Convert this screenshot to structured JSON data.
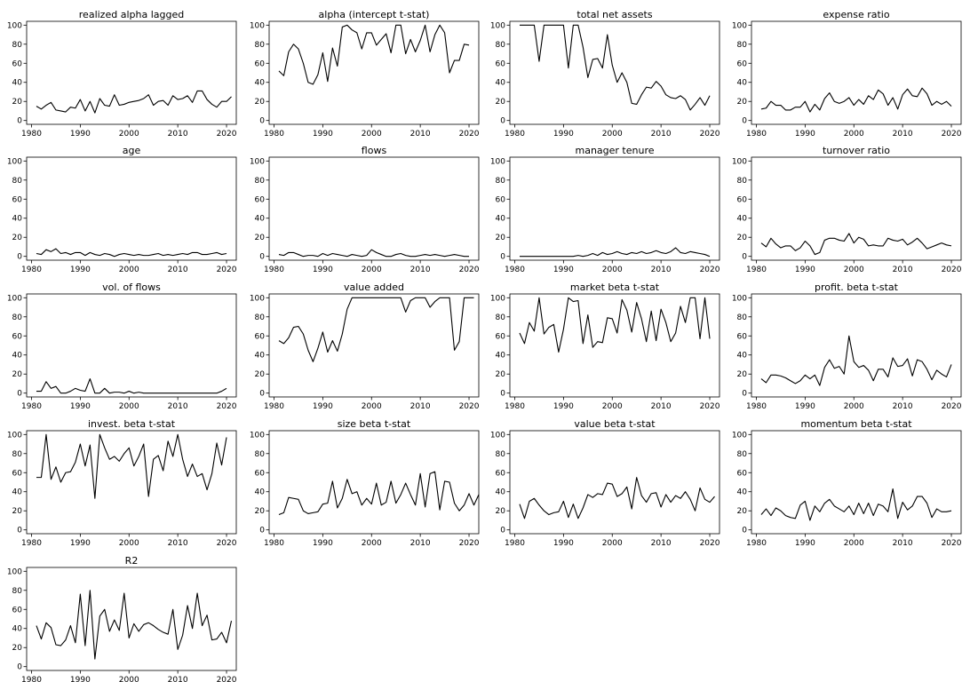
{
  "chart_data": [
    {
      "type": "line",
      "title": "realized alpha lagged",
      "x_start": 1981,
      "ylim": [
        0,
        100
      ],
      "xticks": [
        1980,
        1990,
        2000,
        2010,
        2020
      ],
      "yticks": [
        0,
        20,
        40,
        60,
        80,
        100
      ],
      "values": [
        15,
        12,
        16,
        19,
        11,
        10,
        9,
        14,
        13,
        22,
        10,
        20,
        8,
        23,
        16,
        15,
        27,
        16,
        17,
        19,
        20,
        21,
        23,
        27,
        16,
        20,
        21,
        16,
        26,
        22,
        23,
        26,
        19,
        31,
        31,
        22,
        17,
        14,
        20,
        20,
        25
      ]
    },
    {
      "type": "line",
      "title": "alpha (intercept t-stat)",
      "x_start": 1981,
      "ylim": [
        0,
        100
      ],
      "xticks": [
        1980,
        1990,
        2000,
        2010,
        2020
      ],
      "yticks": [
        0,
        20,
        40,
        60,
        80,
        100
      ],
      "values": [
        52,
        47,
        72,
        80,
        75,
        60,
        40,
        38,
        48,
        71,
        41,
        76,
        57,
        98,
        100,
        95,
        92,
        75,
        92,
        92,
        79,
        85,
        91,
        71,
        100,
        100,
        70,
        85,
        72,
        84,
        100,
        72,
        90,
        100,
        92,
        50,
        63,
        63,
        80,
        79
      ]
    },
    {
      "type": "line",
      "title": "total net assets",
      "x_start": 1981,
      "ylim": [
        0,
        100
      ],
      "xticks": [
        1980,
        1990,
        2000,
        2010,
        2020
      ],
      "yticks": [
        0,
        20,
        40,
        60,
        80,
        100
      ],
      "values": [
        100,
        100,
        100,
        100,
        62,
        100,
        100,
        100,
        100,
        100,
        55,
        100,
        100,
        77,
        45,
        64,
        65,
        55,
        90,
        58,
        40,
        50,
        40,
        18,
        17,
        27,
        35,
        34,
        41,
        36,
        27,
        24,
        23,
        26,
        22,
        11,
        17,
        24,
        16,
        26
      ]
    },
    {
      "type": "line",
      "title": "expense ratio",
      "x_start": 1981,
      "ylim": [
        0,
        100
      ],
      "xticks": [
        1980,
        1990,
        2000,
        2010,
        2020
      ],
      "yticks": [
        0,
        20,
        40,
        60,
        80,
        100
      ],
      "values": [
        12,
        13,
        20,
        16,
        16,
        11,
        11,
        14,
        14,
        20,
        9,
        17,
        11,
        23,
        29,
        20,
        18,
        20,
        24,
        16,
        22,
        17,
        26,
        22,
        32,
        28,
        16,
        24,
        12,
        27,
        33,
        26,
        25,
        34,
        28,
        16,
        20,
        17,
        20,
        15
      ]
    },
    {
      "type": "line",
      "title": "age",
      "x_start": 1981,
      "ylim": [
        0,
        100
      ],
      "xticks": [
        1980,
        1990,
        2000,
        2010,
        2020
      ],
      "yticks": [
        0,
        20,
        40,
        60,
        80,
        100
      ],
      "values": [
        3,
        2,
        7,
        5,
        8,
        3,
        4,
        2,
        4,
        4,
        1,
        4,
        2,
        1,
        3,
        2,
        0,
        2,
        3,
        2,
        1,
        2,
        1,
        1,
        2,
        3,
        1,
        2,
        1,
        2,
        3,
        2,
        4,
        4,
        2,
        2,
        3,
        4,
        2,
        3
      ]
    },
    {
      "type": "line",
      "title": "flows",
      "x_start": 1981,
      "ylim": [
        0,
        100
      ],
      "xticks": [
        1980,
        1990,
        2000,
        2010,
        2020
      ],
      "yticks": [
        0,
        20,
        40,
        60,
        80,
        100
      ],
      "values": [
        2,
        1,
        4,
        4,
        2,
        0,
        1,
        1,
        0,
        3,
        1,
        3,
        2,
        1,
        0,
        2,
        1,
        0,
        1,
        7,
        4,
        2,
        0,
        0,
        2,
        3,
        1,
        0,
        0,
        1,
        2,
        1,
        2,
        1,
        0,
        1,
        2,
        1,
        0,
        0
      ]
    },
    {
      "type": "line",
      "title": "manager tenure",
      "x_start": 1981,
      "ylim": [
        0,
        100
      ],
      "xticks": [
        1980,
        1990,
        2000,
        2010,
        2020
      ],
      "yticks": [
        0,
        20,
        40,
        60,
        80,
        100
      ],
      "values": [
        0,
        0,
        0,
        0,
        0,
        0,
        0,
        0,
        0,
        0,
        0,
        0,
        1,
        0,
        1,
        3,
        1,
        4,
        2,
        3,
        5,
        3,
        2,
        4,
        3,
        5,
        3,
        4,
        6,
        4,
        3,
        5,
        9,
        4,
        3,
        5,
        4,
        3,
        2,
        0
      ]
    },
    {
      "type": "line",
      "title": "turnover ratio",
      "x_start": 1981,
      "ylim": [
        0,
        100
      ],
      "xticks": [
        1980,
        1990,
        2000,
        2010,
        2020
      ],
      "yticks": [
        0,
        20,
        40,
        60,
        80,
        100
      ],
      "values": [
        14,
        10,
        19,
        13,
        9,
        11,
        11,
        6,
        9,
        16,
        11,
        2,
        4,
        17,
        19,
        19,
        17,
        16,
        24,
        14,
        20,
        18,
        11,
        12,
        11,
        11,
        19,
        17,
        16,
        18,
        12,
        15,
        19,
        14,
        8,
        10,
        12,
        14,
        12,
        11
      ]
    },
    {
      "type": "line",
      "title": "vol. of flows",
      "x_start": 1981,
      "ylim": [
        0,
        100
      ],
      "xticks": [
        1980,
        1990,
        2000,
        2010,
        2020
      ],
      "yticks": [
        0,
        20,
        40,
        60,
        80,
        100
      ],
      "values": [
        2,
        2,
        12,
        5,
        7,
        0,
        0,
        2,
        5,
        3,
        2,
        15,
        0,
        0,
        5,
        0,
        1,
        1,
        0,
        2,
        0,
        1,
        0,
        0,
        0,
        0,
        0,
        0,
        0,
        0,
        0,
        0,
        0,
        0,
        0,
        0,
        0,
        0,
        2,
        5
      ]
    },
    {
      "type": "line",
      "title": "value added",
      "x_start": 1981,
      "ylim": [
        0,
        100
      ],
      "xticks": [
        1980,
        1990,
        2000,
        2010,
        2020
      ],
      "yticks": [
        0,
        20,
        40,
        60,
        80,
        100
      ],
      "values": [
        55,
        52,
        58,
        69,
        70,
        62,
        45,
        33,
        47,
        64,
        43,
        55,
        44,
        62,
        88,
        100,
        100,
        100,
        100,
        100,
        100,
        100,
        100,
        100,
        100,
        100,
        85,
        97,
        100,
        100,
        100,
        90,
        96,
        100,
        100,
        100,
        45,
        54,
        100,
        100,
        100
      ]
    },
    {
      "type": "line",
      "title": "market beta t-stat",
      "x_start": 1981,
      "ylim": [
        0,
        100
      ],
      "xticks": [
        1980,
        1990,
        2000,
        2010,
        2020
      ],
      "yticks": [
        0,
        20,
        40,
        60,
        80,
        100
      ],
      "values": [
        63,
        52,
        74,
        65,
        100,
        62,
        69,
        72,
        43,
        67,
        100,
        96,
        97,
        52,
        82,
        48,
        54,
        53,
        79,
        78,
        63,
        98,
        87,
        64,
        95,
        78,
        54,
        86,
        55,
        88,
        74,
        54,
        63,
        91,
        74,
        100,
        100,
        57,
        100,
        57
      ]
    },
    {
      "type": "line",
      "title": "profit. beta t-stat",
      "x_start": 1981,
      "ylim": [
        0,
        100
      ],
      "xticks": [
        1980,
        1990,
        2000,
        2010,
        2020
      ],
      "yticks": [
        0,
        20,
        40,
        60,
        80,
        100
      ],
      "values": [
        15,
        11,
        19,
        19,
        18,
        16,
        13,
        10,
        13,
        19,
        15,
        19,
        8,
        27,
        35,
        26,
        28,
        20,
        60,
        33,
        27,
        29,
        24,
        13,
        25,
        25,
        17,
        37,
        28,
        29,
        36,
        18,
        35,
        33,
        25,
        14,
        24,
        20,
        17,
        30
      ]
    },
    {
      "type": "line",
      "title": "invest. beta t-stat",
      "x_start": 1981,
      "ylim": [
        0,
        100
      ],
      "xticks": [
        1980,
        1990,
        2000,
        2010,
        2020
      ],
      "yticks": [
        0,
        20,
        40,
        60,
        80,
        100
      ],
      "values": [
        55,
        55,
        100,
        53,
        66,
        50,
        60,
        61,
        71,
        90,
        67,
        89,
        33,
        100,
        86,
        74,
        77,
        72,
        80,
        86,
        67,
        77,
        90,
        35,
        74,
        78,
        62,
        93,
        77,
        100,
        74,
        56,
        69,
        56,
        59,
        42,
        59,
        91,
        68,
        97
      ]
    },
    {
      "type": "line",
      "title": "size beta t-stat",
      "x_start": 1981,
      "ylim": [
        0,
        100
      ],
      "xticks": [
        1980,
        1990,
        2000,
        2010,
        2020
      ],
      "yticks": [
        0,
        20,
        40,
        60,
        80,
        100
      ],
      "values": [
        16,
        18,
        34,
        33,
        32,
        20,
        17,
        18,
        19,
        27,
        28,
        51,
        23,
        33,
        53,
        38,
        40,
        26,
        33,
        27,
        49,
        26,
        29,
        51,
        28,
        37,
        49,
        37,
        26,
        59,
        24,
        59,
        61,
        21,
        51,
        50,
        28,
        20,
        26,
        38,
        26,
        37
      ]
    },
    {
      "type": "line",
      "title": "value beta t-stat",
      "x_start": 1981,
      "ylim": [
        0,
        100
      ],
      "xticks": [
        1980,
        1990,
        2000,
        2010,
        2020
      ],
      "yticks": [
        0,
        20,
        40,
        60,
        80,
        100
      ],
      "values": [
        27,
        12,
        30,
        33,
        26,
        20,
        16,
        18,
        19,
        30,
        13,
        27,
        12,
        23,
        37,
        34,
        38,
        37,
        49,
        48,
        35,
        38,
        45,
        22,
        55,
        36,
        29,
        38,
        39,
        24,
        37,
        29,
        36,
        33,
        40,
        32,
        20,
        44,
        32,
        29,
        35
      ]
    },
    {
      "type": "line",
      "title": "momentum beta t-stat",
      "x_start": 1981,
      "ylim": [
        0,
        100
      ],
      "xticks": [
        1980,
        1990,
        2000,
        2010,
        2020
      ],
      "yticks": [
        0,
        20,
        40,
        60,
        80,
        100
      ],
      "values": [
        16,
        22,
        15,
        23,
        20,
        15,
        13,
        12,
        26,
        30,
        10,
        25,
        19,
        28,
        32,
        25,
        22,
        19,
        25,
        16,
        28,
        17,
        28,
        15,
        27,
        25,
        19,
        43,
        12,
        29,
        21,
        25,
        35,
        35,
        28,
        13,
        22,
        19,
        19,
        20
      ]
    },
    {
      "type": "line",
      "title": "R2",
      "x_start": 1981,
      "ylim": [
        0,
        100
      ],
      "xticks": [
        1980,
        1990,
        2000,
        2010,
        2020
      ],
      "yticks": [
        0,
        20,
        40,
        60,
        80,
        100
      ],
      "values": [
        43,
        29,
        46,
        41,
        23,
        22,
        28,
        43,
        25,
        76,
        22,
        80,
        8,
        53,
        60,
        37,
        49,
        38,
        77,
        30,
        45,
        37,
        44,
        46,
        43,
        39,
        36,
        34,
        60,
        18,
        33,
        64,
        40,
        77,
        43,
        54,
        28,
        29,
        36,
        25,
        48
      ]
    }
  ]
}
